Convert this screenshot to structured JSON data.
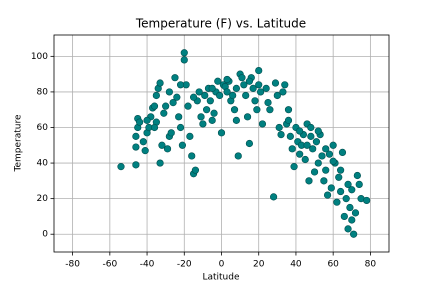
{
  "chart_data": {
    "type": "scatter",
    "title": "Temperature (F) vs. Latitude",
    "xlabel": "Latitude",
    "ylabel": "Temperature",
    "color": "#008080",
    "edgecolor": "#004f4f",
    "grid": true,
    "xlim": [
      -90,
      90
    ],
    "ylim": [
      -10,
      112
    ],
    "xticks": [
      -80,
      -60,
      -40,
      -20,
      0,
      20,
      40,
      60,
      80
    ],
    "yticks": [
      0,
      20,
      40,
      60,
      80,
      100
    ],
    "x": [
      -54,
      -46,
      -46,
      -46,
      -45,
      -45,
      -44,
      -42,
      -41,
      -40,
      -39,
      -38,
      -37,
      -36,
      -35,
      -35,
      -34,
      -33,
      -33,
      -32,
      -31,
      -30,
      -29,
      -28,
      -27,
      -26,
      -25,
      -24,
      -23,
      -22,
      -21,
      -20,
      -20,
      -19,
      -18,
      -17,
      -16,
      -15,
      -14,
      -13,
      -12,
      -11,
      -10,
      -9,
      -8,
      -7,
      -6,
      -5,
      -4,
      -3,
      -2,
      -1,
      0,
      1,
      2,
      3,
      4,
      5,
      6,
      7,
      8,
      9,
      10,
      11,
      12,
      13,
      14,
      15,
      16,
      17,
      18,
      19,
      20,
      21,
      22,
      24,
      25,
      26,
      28,
      29,
      30,
      31,
      32,
      33,
      34,
      35,
      36,
      37,
      38,
      39,
      40,
      41,
      42,
      43,
      44,
      45,
      46,
      47,
      48,
      49,
      50,
      51,
      52,
      53,
      54,
      55,
      56,
      57,
      58,
      59,
      60,
      61,
      62,
      63,
      64,
      65,
      66,
      67,
      68,
      69,
      70,
      71,
      72,
      73,
      74,
      75,
      78,
      -28,
      -22,
      -15,
      -5,
      3,
      8,
      15,
      20,
      36,
      42,
      46,
      48,
      52,
      56,
      60,
      64,
      68,
      70,
      -40,
      -36
    ],
    "y": [
      38,
      39,
      49,
      55,
      60,
      65,
      63,
      52,
      47,
      57,
      60,
      66,
      71,
      72,
      63,
      78,
      82,
      85,
      40,
      50,
      68,
      72,
      48,
      55,
      57,
      74,
      88,
      77,
      66,
      60,
      50,
      102,
      98,
      84,
      72,
      55,
      44,
      34,
      36,
      75,
      80,
      66,
      62,
      78,
      70,
      82,
      75,
      64,
      68,
      80,
      86,
      78,
      57,
      84,
      83,
      80,
      86,
      75,
      78,
      70,
      64,
      44,
      90,
      88,
      84,
      78,
      66,
      51,
      88,
      82,
      75,
      70,
      92,
      80,
      62,
      82,
      74,
      70,
      21,
      85,
      78,
      60,
      56,
      80,
      84,
      62,
      70,
      55,
      48,
      38,
      60,
      52,
      45,
      50,
      56,
      42,
      62,
      30,
      55,
      48,
      35,
      52,
      40,
      56,
      44,
      30,
      36,
      22,
      45,
      26,
      50,
      40,
      18,
      32,
      24,
      46,
      10,
      20,
      3,
      15,
      25,
      0,
      12,
      33,
      28,
      20,
      19,
      80,
      84,
      77,
      82,
      87,
      82,
      86,
      84,
      64,
      58,
      50,
      60,
      58,
      48,
      41,
      36,
      28,
      8,
      64,
      60
    ]
  }
}
